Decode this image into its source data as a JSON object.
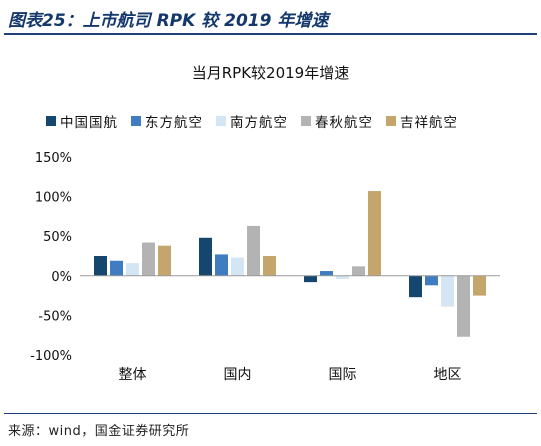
{
  "figure_title": "图表25：上市航司 RPK 较 2019 年增速",
  "source": "来源：wind，国金证券研究所",
  "chart_data": {
    "type": "bar",
    "title": "当月RPK较2019年增速",
    "xlabel": "",
    "ylabel": "",
    "categories": [
      "整体",
      "国内",
      "国际",
      "地区"
    ],
    "ylim": [
      -1.0,
      1.5
    ],
    "yticks": [
      -1.0,
      -0.5,
      0,
      0.5,
      1.0,
      1.5
    ],
    "ytick_labels": [
      "-100%",
      "-50%",
      "0%",
      "50%",
      "100%",
      "150%"
    ],
    "legend_position": "top",
    "grid": false,
    "series": [
      {
        "name": "中国国航",
        "color": "#15466e",
        "values": [
          0.25,
          0.48,
          -0.08,
          -0.27
        ]
      },
      {
        "name": "东方航空",
        "color": "#3f7cc0",
        "values": [
          0.19,
          0.27,
          0.06,
          -0.12
        ]
      },
      {
        "name": "南方航空",
        "color": "#d4e5f4",
        "values": [
          0.16,
          0.23,
          -0.04,
          -0.39
        ]
      },
      {
        "name": "春秋航空",
        "color": "#b3b3b3",
        "values": [
          0.42,
          0.63,
          0.12,
          -0.77
        ]
      },
      {
        "name": "吉祥航空",
        "color": "#c4a56b",
        "values": [
          0.38,
          0.25,
          1.07,
          -0.25
        ]
      }
    ]
  }
}
